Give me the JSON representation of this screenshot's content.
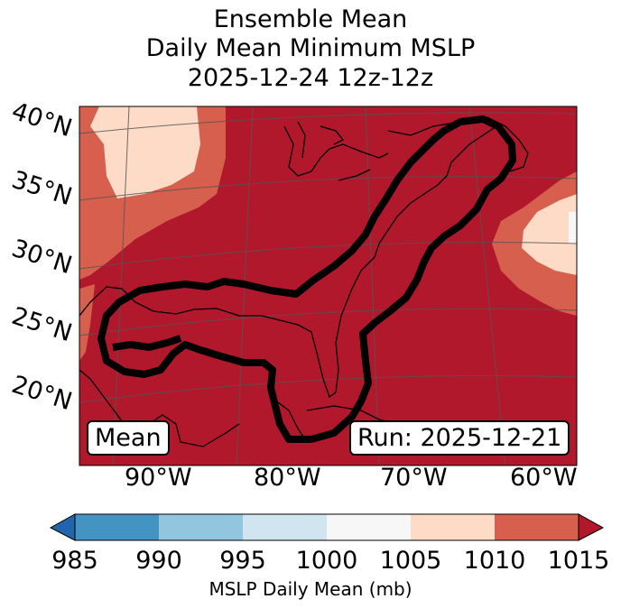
{
  "title": {
    "line1": "Ensemble Mean",
    "line2": "Daily Mean Minimum MSLP",
    "line3": "2025-12-24 12z-12z"
  },
  "map": {
    "lat_labels": [
      "40°N",
      "35°N",
      "30°N",
      "25°N",
      "20°N"
    ],
    "lon_labels": [
      "90°W",
      "80°W",
      "70°W",
      "60°W"
    ],
    "mean_tag": "Mean",
    "run_tag": "Run: 2025-12-21",
    "land_fill": "#b2182b",
    "colors": {
      "c985": "#2166ac",
      "c990": "#4393c3",
      "c995": "#92c5de",
      "c1000": "#d1e5f0",
      "c1005": "#f7f7f7",
      "c1010": "#fddbc7",
      "c1015": "#d6604d",
      "cmax": "#b2182b"
    }
  },
  "colorbar": {
    "ticks": [
      "985",
      "990",
      "995",
      "1000",
      "1005",
      "1010",
      "1015"
    ],
    "label": "MSLP Daily Mean (mb)"
  }
}
